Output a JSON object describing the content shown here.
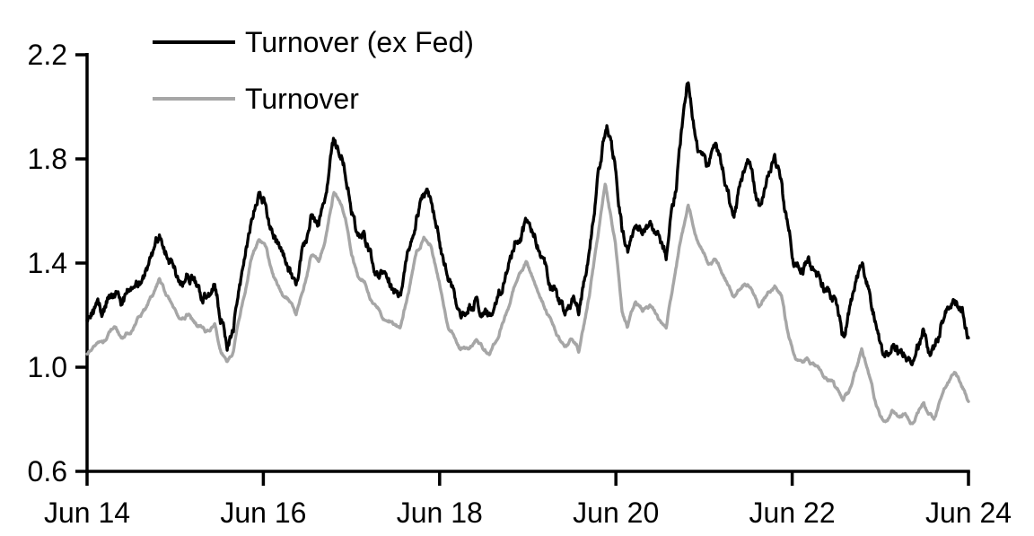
{
  "chart_data": {
    "type": "line",
    "title": "",
    "xlabel": "",
    "ylabel": "",
    "x_unit": "years since Jun 2014 (ticks show dates)",
    "xlim": [
      0,
      10
    ],
    "ylim": [
      0.6,
      2.2
    ],
    "grid": false,
    "legend_position": "top-left-inside",
    "x_axis": {
      "tick_positions": [
        0,
        2,
        4,
        6,
        8,
        10
      ],
      "tick_labels": [
        "Jun 14",
        "Jun 16",
        "Jun 18",
        "Jun 20",
        "Jun 22",
        "Jun 24"
      ]
    },
    "y_axis": {
      "tick_positions": [
        0.6,
        1.0,
        1.4,
        1.8,
        2.2
      ],
      "tick_labels": [
        "0.6",
        "1.0",
        "1.4",
        "1.8",
        "2.2"
      ]
    },
    "series": [
      {
        "name": "Turnover (ex Fed)",
        "color": "#000000",
        "points": [
          [
            0.0,
            1.17
          ],
          [
            0.06,
            1.21
          ],
          [
            0.12,
            1.24
          ],
          [
            0.18,
            1.22
          ],
          [
            0.25,
            1.27
          ],
          [
            0.32,
            1.29
          ],
          [
            0.4,
            1.25
          ],
          [
            0.48,
            1.28
          ],
          [
            0.55,
            1.31
          ],
          [
            0.62,
            1.34
          ],
          [
            0.7,
            1.38
          ],
          [
            0.76,
            1.44
          ],
          [
            0.82,
            1.51
          ],
          [
            0.88,
            1.45
          ],
          [
            0.95,
            1.4
          ],
          [
            1.05,
            1.32
          ],
          [
            1.15,
            1.35
          ],
          [
            1.25,
            1.3
          ],
          [
            1.35,
            1.27
          ],
          [
            1.45,
            1.3
          ],
          [
            1.52,
            1.19
          ],
          [
            1.59,
            1.08
          ],
          [
            1.66,
            1.14
          ],
          [
            1.75,
            1.35
          ],
          [
            1.85,
            1.55
          ],
          [
            1.95,
            1.66
          ],
          [
            2.03,
            1.61
          ],
          [
            2.12,
            1.5
          ],
          [
            2.22,
            1.42
          ],
          [
            2.3,
            1.37
          ],
          [
            2.37,
            1.33
          ],
          [
            2.46,
            1.46
          ],
          [
            2.54,
            1.58
          ],
          [
            2.63,
            1.55
          ],
          [
            2.72,
            1.68
          ],
          [
            2.8,
            1.88
          ],
          [
            2.86,
            1.83
          ],
          [
            2.93,
            1.75
          ],
          [
            3.0,
            1.6
          ],
          [
            3.07,
            1.52
          ],
          [
            3.15,
            1.49
          ],
          [
            3.25,
            1.39
          ],
          [
            3.35,
            1.34
          ],
          [
            3.45,
            1.31
          ],
          [
            3.55,
            1.28
          ],
          [
            3.65,
            1.43
          ],
          [
            3.74,
            1.59
          ],
          [
            3.82,
            1.67
          ],
          [
            3.9,
            1.64
          ],
          [
            4.0,
            1.49
          ],
          [
            4.1,
            1.33
          ],
          [
            4.22,
            1.23
          ],
          [
            4.32,
            1.21
          ],
          [
            4.42,
            1.25
          ],
          [
            4.5,
            1.22
          ],
          [
            4.57,
            1.18
          ],
          [
            4.66,
            1.28
          ],
          [
            4.76,
            1.38
          ],
          [
            4.87,
            1.48
          ],
          [
            4.98,
            1.55
          ],
          [
            5.08,
            1.49
          ],
          [
            5.2,
            1.38
          ],
          [
            5.32,
            1.27
          ],
          [
            5.42,
            1.22
          ],
          [
            5.5,
            1.26
          ],
          [
            5.58,
            1.21
          ],
          [
            5.7,
            1.45
          ],
          [
            5.8,
            1.73
          ],
          [
            5.9,
            1.94
          ],
          [
            5.99,
            1.77
          ],
          [
            6.07,
            1.52
          ],
          [
            6.13,
            1.44
          ],
          [
            6.22,
            1.55
          ],
          [
            6.3,
            1.51
          ],
          [
            6.38,
            1.57
          ],
          [
            6.48,
            1.5
          ],
          [
            6.57,
            1.43
          ],
          [
            6.68,
            1.7
          ],
          [
            6.75,
            1.92
          ],
          [
            6.81,
            2.12
          ],
          [
            6.87,
            1.97
          ],
          [
            6.93,
            1.85
          ],
          [
            6.99,
            1.8
          ],
          [
            7.05,
            1.77
          ],
          [
            7.13,
            1.87
          ],
          [
            7.22,
            1.75
          ],
          [
            7.32,
            1.57
          ],
          [
            7.41,
            1.7
          ],
          [
            7.5,
            1.8
          ],
          [
            7.57,
            1.7
          ],
          [
            7.62,
            1.62
          ],
          [
            7.68,
            1.68
          ],
          [
            7.74,
            1.74
          ],
          [
            7.8,
            1.8
          ],
          [
            7.88,
            1.71
          ],
          [
            7.95,
            1.52
          ],
          [
            8.02,
            1.41
          ],
          [
            8.1,
            1.38
          ],
          [
            8.18,
            1.4
          ],
          [
            8.27,
            1.34
          ],
          [
            8.36,
            1.31
          ],
          [
            8.45,
            1.27
          ],
          [
            8.52,
            1.2
          ],
          [
            8.58,
            1.13
          ],
          [
            8.64,
            1.2
          ],
          [
            8.72,
            1.32
          ],
          [
            8.79,
            1.43
          ],
          [
            8.86,
            1.32
          ],
          [
            8.93,
            1.19
          ],
          [
            9.0,
            1.08
          ],
          [
            9.06,
            1.04
          ],
          [
            9.13,
            1.08
          ],
          [
            9.2,
            1.05
          ],
          [
            9.28,
            1.06
          ],
          [
            9.36,
            1.04
          ],
          [
            9.43,
            1.08
          ],
          [
            9.49,
            1.13
          ],
          [
            9.55,
            1.08
          ],
          [
            9.61,
            1.06
          ],
          [
            9.68,
            1.14
          ],
          [
            9.76,
            1.23
          ],
          [
            9.84,
            1.28
          ],
          [
            9.9,
            1.23
          ],
          [
            9.95,
            1.19
          ],
          [
            10.0,
            1.11
          ]
        ]
      },
      {
        "name": "Turnover",
        "color": "#a6a6a6",
        "points": [
          [
            0.0,
            1.04
          ],
          [
            0.06,
            1.08
          ],
          [
            0.12,
            1.11
          ],
          [
            0.18,
            1.09
          ],
          [
            0.25,
            1.13
          ],
          [
            0.32,
            1.15
          ],
          [
            0.4,
            1.11
          ],
          [
            0.48,
            1.14
          ],
          [
            0.55,
            1.17
          ],
          [
            0.62,
            1.2
          ],
          [
            0.7,
            1.24
          ],
          [
            0.76,
            1.29
          ],
          [
            0.82,
            1.35
          ],
          [
            0.88,
            1.29
          ],
          [
            0.95,
            1.25
          ],
          [
            1.05,
            1.18
          ],
          [
            1.15,
            1.21
          ],
          [
            1.25,
            1.16
          ],
          [
            1.35,
            1.13
          ],
          [
            1.45,
            1.16
          ],
          [
            1.52,
            1.07
          ],
          [
            1.59,
            1.01
          ],
          [
            1.66,
            1.05
          ],
          [
            1.75,
            1.22
          ],
          [
            1.85,
            1.4
          ],
          [
            1.95,
            1.49
          ],
          [
            2.03,
            1.45
          ],
          [
            2.12,
            1.35
          ],
          [
            2.22,
            1.28
          ],
          [
            2.3,
            1.24
          ],
          [
            2.37,
            1.2
          ],
          [
            2.46,
            1.32
          ],
          [
            2.54,
            1.43
          ],
          [
            2.63,
            1.4
          ],
          [
            2.72,
            1.52
          ],
          [
            2.8,
            1.69
          ],
          [
            2.86,
            1.64
          ],
          [
            2.93,
            1.57
          ],
          [
            3.0,
            1.43
          ],
          [
            3.07,
            1.36
          ],
          [
            3.15,
            1.33
          ],
          [
            3.25,
            1.24
          ],
          [
            3.35,
            1.2
          ],
          [
            3.45,
            1.18
          ],
          [
            3.55,
            1.15
          ],
          [
            3.65,
            1.28
          ],
          [
            3.74,
            1.44
          ],
          [
            3.82,
            1.51
          ],
          [
            3.9,
            1.47
          ],
          [
            4.0,
            1.31
          ],
          [
            4.1,
            1.17
          ],
          [
            4.22,
            1.08
          ],
          [
            4.32,
            1.07
          ],
          [
            4.42,
            1.11
          ],
          [
            4.5,
            1.08
          ],
          [
            4.57,
            1.05
          ],
          [
            4.66,
            1.12
          ],
          [
            4.76,
            1.22
          ],
          [
            4.87,
            1.33
          ],
          [
            4.98,
            1.4
          ],
          [
            5.08,
            1.33
          ],
          [
            5.2,
            1.23
          ],
          [
            5.32,
            1.13
          ],
          [
            5.42,
            1.08
          ],
          [
            5.5,
            1.11
          ],
          [
            5.58,
            1.05
          ],
          [
            5.7,
            1.28
          ],
          [
            5.8,
            1.52
          ],
          [
            5.88,
            1.7
          ],
          [
            5.99,
            1.48
          ],
          [
            6.07,
            1.22
          ],
          [
            6.13,
            1.16
          ],
          [
            6.22,
            1.25
          ],
          [
            6.3,
            1.21
          ],
          [
            6.38,
            1.25
          ],
          [
            6.48,
            1.19
          ],
          [
            6.57,
            1.14
          ],
          [
            6.68,
            1.38
          ],
          [
            6.75,
            1.52
          ],
          [
            6.82,
            1.63
          ],
          [
            6.87,
            1.55
          ],
          [
            6.93,
            1.48
          ],
          [
            6.99,
            1.44
          ],
          [
            7.05,
            1.4
          ],
          [
            7.13,
            1.41
          ],
          [
            7.22,
            1.35
          ],
          [
            7.32,
            1.27
          ],
          [
            7.41,
            1.31
          ],
          [
            7.5,
            1.33
          ],
          [
            7.57,
            1.27
          ],
          [
            7.62,
            1.22
          ],
          [
            7.68,
            1.26
          ],
          [
            7.74,
            1.29
          ],
          [
            7.8,
            1.32
          ],
          [
            7.88,
            1.27
          ],
          [
            7.95,
            1.13
          ],
          [
            8.02,
            1.04
          ],
          [
            8.1,
            1.02
          ],
          [
            8.18,
            1.03
          ],
          [
            8.27,
            1.0
          ],
          [
            8.36,
            0.98
          ],
          [
            8.45,
            0.95
          ],
          [
            8.52,
            0.91
          ],
          [
            8.58,
            0.86
          ],
          [
            8.64,
            0.9
          ],
          [
            8.72,
            0.99
          ],
          [
            8.79,
            1.08
          ],
          [
            8.86,
            0.98
          ],
          [
            8.93,
            0.88
          ],
          [
            9.0,
            0.81
          ],
          [
            9.06,
            0.79
          ],
          [
            9.13,
            0.84
          ],
          [
            9.2,
            0.8
          ],
          [
            9.28,
            0.81
          ],
          [
            9.36,
            0.79
          ],
          [
            9.43,
            0.83
          ],
          [
            9.49,
            0.86
          ],
          [
            9.55,
            0.81
          ],
          [
            9.61,
            0.79
          ],
          [
            9.68,
            0.88
          ],
          [
            9.76,
            0.95
          ],
          [
            9.84,
            0.98
          ],
          [
            9.9,
            0.94
          ],
          [
            9.95,
            0.91
          ],
          [
            10.0,
            0.86
          ]
        ]
      }
    ]
  },
  "colors": {
    "axis": "#000000",
    "text": "#000000",
    "background": "#ffffff"
  }
}
